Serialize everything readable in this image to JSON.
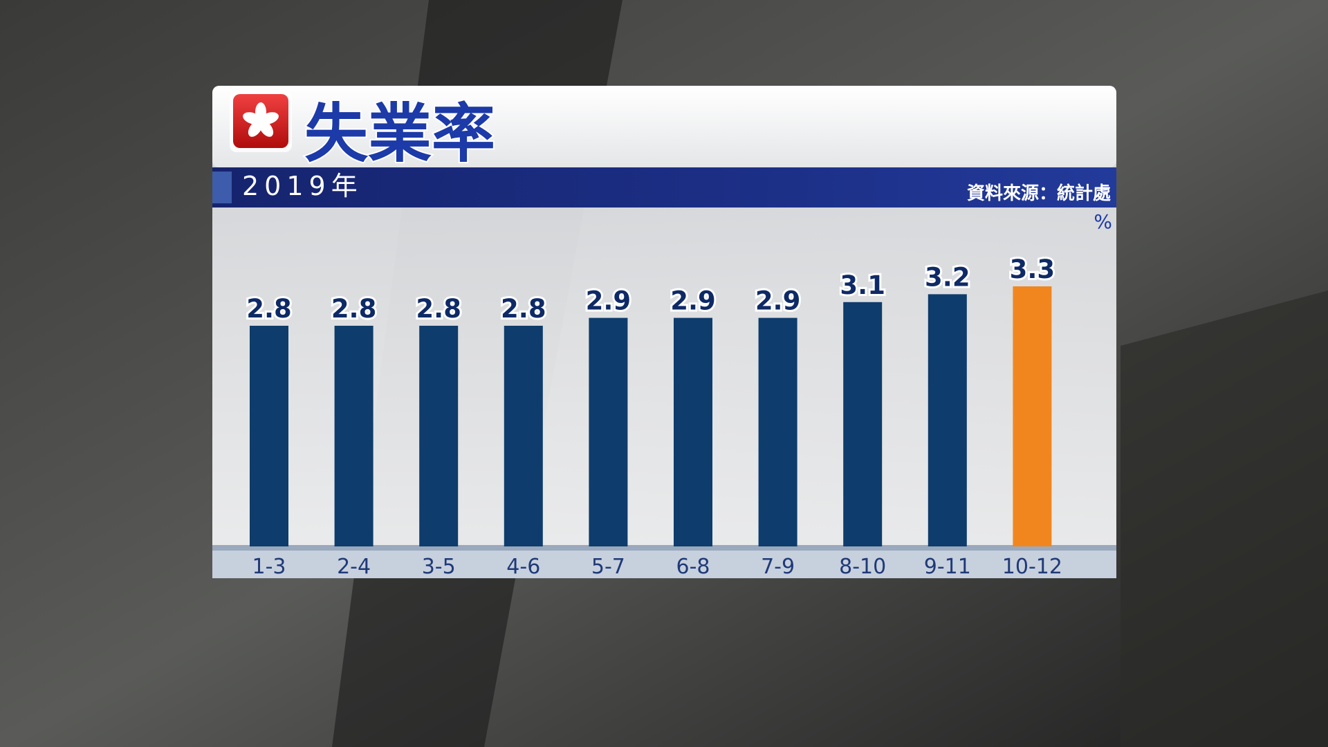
{
  "chart_data": {
    "type": "bar",
    "title": "失業率",
    "subtitle": "2019年",
    "source": "資料來源：統計處",
    "unit": "%",
    "categories": [
      "1-3",
      "2-4",
      "3-5",
      "4-6",
      "5-7",
      "6-8",
      "7-9",
      "8-10",
      "9-11",
      "10-12"
    ],
    "values": [
      2.8,
      2.8,
      2.8,
      2.8,
      2.9,
      2.9,
      2.9,
      3.1,
      3.2,
      3.3
    ],
    "colors": [
      "#0e3c6c",
      "#0e3c6c",
      "#0e3c6c",
      "#0e3c6c",
      "#0e3c6c",
      "#0e3c6c",
      "#0e3c6c",
      "#0e3c6c",
      "#0e3c6c",
      "#f2861e"
    ]
  }
}
